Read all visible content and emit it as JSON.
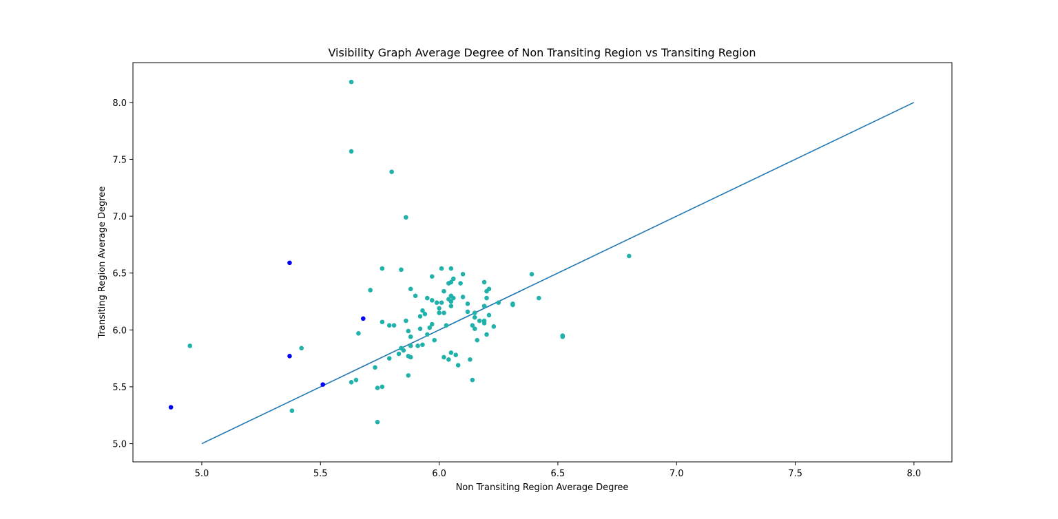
{
  "chart_data": {
    "type": "scatter",
    "title": "Visibility Graph Average Degree of Non Transiting Region vs Transiting Region",
    "xlabel": "Non Transiting Region Average Degree",
    "ylabel": "Transiting Region Average Degree",
    "xlim": [
      4.71,
      8.16
    ],
    "ylim": [
      4.84,
      8.35
    ],
    "x_ticks": [
      "5.0",
      "5.5",
      "6.0",
      "6.5",
      "7.0",
      "7.5",
      "8.0"
    ],
    "y_ticks": [
      "5.0",
      "5.5",
      "6.0",
      "6.5",
      "7.0",
      "7.5",
      "8.0"
    ],
    "grid": false,
    "colors": {
      "primary": "#20b2aa",
      "secondary": "#0000ff",
      "line": "#1f77b4"
    },
    "reference_line": {
      "x": [
        5.0,
        8.0
      ],
      "y": [
        5.0,
        8.0
      ]
    },
    "series": [
      {
        "color": "#20b2aa",
        "points": [
          [
            5.63,
            8.18
          ],
          [
            5.63,
            7.57
          ],
          [
            5.8,
            7.39
          ],
          [
            5.86,
            6.99
          ],
          [
            6.8,
            6.65
          ],
          [
            4.95,
            5.86
          ],
          [
            5.42,
            5.84
          ],
          [
            5.38,
            5.29
          ],
          [
            5.66,
            5.97
          ],
          [
            5.63,
            5.54
          ],
          [
            5.65,
            5.56
          ],
          [
            5.74,
            5.49
          ],
          [
            5.76,
            5.5
          ],
          [
            5.74,
            5.19
          ],
          [
            5.73,
            5.67
          ],
          [
            5.71,
            6.35
          ],
          [
            5.76,
            6.54
          ],
          [
            5.84,
            6.53
          ],
          [
            5.76,
            6.07
          ],
          [
            5.79,
            6.04
          ],
          [
            5.81,
            6.04
          ],
          [
            5.86,
            6.08
          ],
          [
            5.87,
            5.99
          ],
          [
            5.88,
            5.94
          ],
          [
            5.84,
            5.84
          ],
          [
            5.85,
            5.82
          ],
          [
            5.83,
            5.79
          ],
          [
            5.79,
            5.75
          ],
          [
            5.87,
            5.77
          ],
          [
            5.88,
            5.76
          ],
          [
            5.87,
            5.6
          ],
          [
            5.88,
            5.86
          ],
          [
            5.91,
            5.86
          ],
          [
            5.93,
            5.87
          ],
          [
            5.92,
            6.01
          ],
          [
            5.95,
            5.96
          ],
          [
            5.98,
            5.91
          ],
          [
            5.96,
            6.02
          ],
          [
            5.97,
            6.05
          ],
          [
            5.92,
            6.12
          ],
          [
            5.94,
            6.14
          ],
          [
            5.93,
            6.17
          ],
          [
            5.9,
            6.3
          ],
          [
            5.88,
            6.36
          ],
          [
            5.95,
            6.28
          ],
          [
            5.97,
            6.26
          ],
          [
            5.99,
            6.24
          ],
          [
            6.01,
            6.24
          ],
          [
            6.0,
            6.19
          ],
          [
            6.0,
            6.15
          ],
          [
            6.02,
            6.15
          ],
          [
            6.03,
            6.04
          ],
          [
            6.02,
            6.34
          ],
          [
            6.04,
            6.41
          ],
          [
            6.04,
            6.27
          ],
          [
            6.05,
            6.25
          ],
          [
            6.05,
            6.21
          ],
          [
            6.05,
            6.3
          ],
          [
            6.06,
            6.28
          ],
          [
            6.05,
            6.42
          ],
          [
            6.06,
            6.45
          ],
          [
            6.09,
            6.41
          ],
          [
            6.1,
            6.49
          ],
          [
            6.01,
            6.54
          ],
          [
            6.05,
            6.54
          ],
          [
            5.97,
            6.47
          ],
          [
            6.1,
            6.29
          ],
          [
            6.12,
            6.23
          ],
          [
            6.12,
            6.16
          ],
          [
            6.15,
            6.15
          ],
          [
            6.15,
            6.11
          ],
          [
            6.17,
            6.08
          ],
          [
            6.14,
            6.04
          ],
          [
            6.15,
            6.01
          ],
          [
            6.19,
            6.06
          ],
          [
            6.19,
            6.08
          ],
          [
            6.19,
            6.21
          ],
          [
            6.2,
            6.28
          ],
          [
            6.2,
            6.34
          ],
          [
            6.21,
            6.36
          ],
          [
            6.19,
            6.42
          ],
          [
            6.21,
            6.13
          ],
          [
            6.23,
            6.03
          ],
          [
            6.2,
            5.96
          ],
          [
            6.16,
            5.91
          ],
          [
            6.25,
            6.24
          ],
          [
            6.31,
            6.22
          ],
          [
            6.31,
            6.23
          ],
          [
            6.39,
            6.49
          ],
          [
            6.42,
            6.28
          ],
          [
            6.52,
            5.95
          ],
          [
            6.52,
            5.94
          ],
          [
            6.05,
            5.8
          ],
          [
            6.07,
            5.78
          ],
          [
            6.02,
            5.76
          ],
          [
            6.04,
            5.74
          ],
          [
            6.08,
            5.69
          ],
          [
            6.13,
            5.74
          ],
          [
            6.14,
            5.56
          ]
        ]
      },
      {
        "color": "#0000ff",
        "points": [
          [
            4.87,
            5.32
          ],
          [
            5.37,
            6.59
          ],
          [
            5.37,
            5.77
          ],
          [
            5.51,
            5.52
          ],
          [
            5.68,
            6.1
          ]
        ]
      }
    ]
  }
}
